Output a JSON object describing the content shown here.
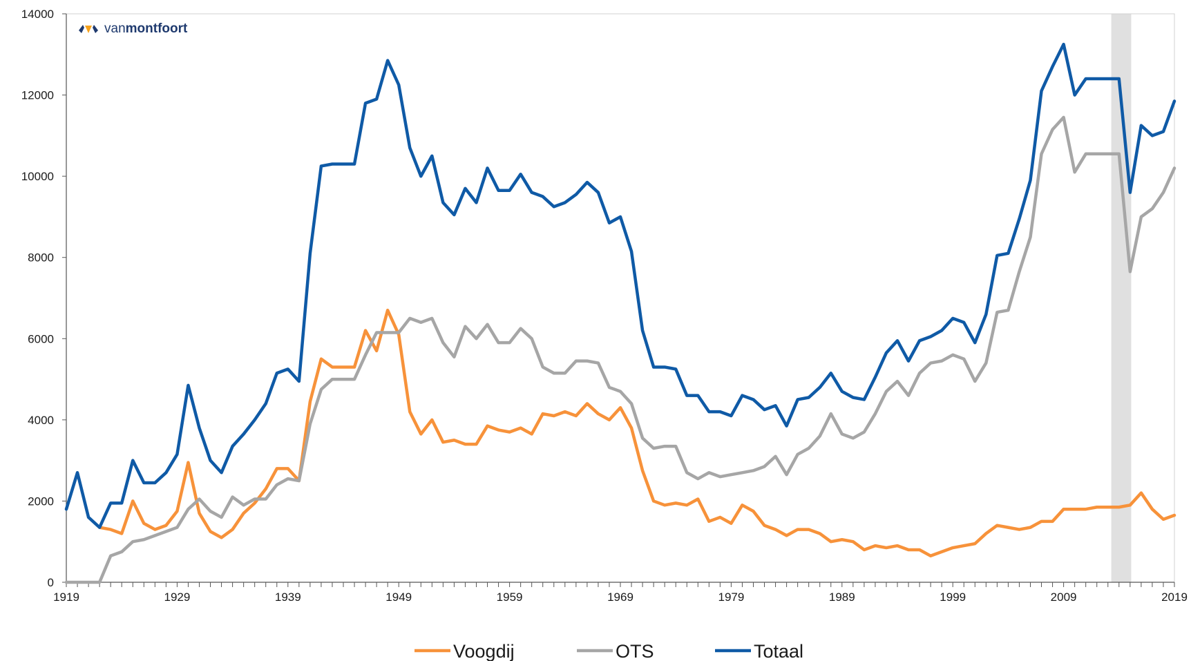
{
  "logo": {
    "prefix": "van",
    "brand": "montfoort"
  },
  "chart_data": {
    "type": "line",
    "title": "",
    "xlabel": "",
    "ylabel": "",
    "xlim": [
      1919,
      2019
    ],
    "ylim": [
      0,
      14000
    ],
    "y_ticks": [
      0,
      2000,
      4000,
      6000,
      8000,
      10000,
      12000,
      14000
    ],
    "x_tick_labels": [
      1919,
      1929,
      1939,
      1949,
      1959,
      1969,
      1979,
      1989,
      1999,
      2009,
      2019
    ],
    "grid": false,
    "legend_position": "bottom",
    "highlight_band": {
      "from": 2013.3,
      "to": 2015.1,
      "color": "#e0e0e0"
    },
    "x": [
      1919,
      1920,
      1921,
      1922,
      1923,
      1924,
      1925,
      1926,
      1927,
      1928,
      1929,
      1930,
      1931,
      1932,
      1933,
      1934,
      1935,
      1936,
      1937,
      1938,
      1939,
      1940,
      1941,
      1942,
      1943,
      1944,
      1945,
      1946,
      1947,
      1948,
      1949,
      1950,
      1951,
      1952,
      1953,
      1954,
      1955,
      1956,
      1957,
      1958,
      1959,
      1960,
      1961,
      1962,
      1963,
      1964,
      1965,
      1966,
      1967,
      1968,
      1969,
      1970,
      1971,
      1972,
      1973,
      1974,
      1975,
      1976,
      1977,
      1978,
      1979,
      1980,
      1981,
      1982,
      1983,
      1984,
      1985,
      1986,
      1987,
      1988,
      1989,
      1990,
      1991,
      1992,
      1993,
      1994,
      1995,
      1996,
      1997,
      1998,
      1999,
      2000,
      2001,
      2002,
      2003,
      2004,
      2005,
      2006,
      2007,
      2008,
      2009,
      2010,
      2011,
      2012,
      2013,
      2014,
      2015,
      2016,
      2017,
      2018,
      2019
    ],
    "series": [
      {
        "name": "Voogdij",
        "color": "#f7923a",
        "values": [
          null,
          null,
          null,
          1350,
          1300,
          1200,
          2000,
          1450,
          1300,
          1400,
          1750,
          2950,
          1700,
          1250,
          1100,
          1300,
          1700,
          1950,
          2300,
          2800,
          2800,
          2500,
          4450,
          5500,
          5300,
          5300,
          5300,
          6200,
          5700,
          6700,
          6100,
          4200,
          3650,
          4000,
          3450,
          3500,
          3400,
          3400,
          3850,
          3750,
          3700,
          3800,
          3650,
          4150,
          4100,
          4200,
          4100,
          4400,
          4150,
          4000,
          4300,
          3800,
          2750,
          2000,
          1900,
          1950,
          1900,
          2050,
          1500,
          1600,
          1450,
          1900,
          1750,
          1400,
          1300,
          1150,
          1300,
          1300,
          1200,
          1000,
          1050,
          1000,
          800,
          900,
          850,
          900,
          800,
          800,
          650,
          750,
          850,
          900,
          950,
          1200,
          1400,
          1350,
          1300,
          1350,
          1500,
          1500,
          1800,
          1800,
          1800,
          1850,
          1850,
          1850,
          1900,
          2200,
          1800,
          1550,
          1650
        ]
      },
      {
        "name": "OTS",
        "color": "#a6a6a6",
        "values": [
          0,
          0,
          0,
          0,
          650,
          750,
          1000,
          1050,
          1150,
          1250,
          1350,
          1800,
          2050,
          1750,
          1600,
          2100,
          1900,
          2050,
          2050,
          2400,
          2550,
          2500,
          3900,
          4750,
          5000,
          5000,
          5000,
          5600,
          6150,
          6150,
          6150,
          6500,
          6400,
          6500,
          5900,
          5550,
          6300,
          6000,
          6350,
          5900,
          5900,
          6250,
          6000,
          5300,
          5150,
          5150,
          5450,
          5450,
          5400,
          4800,
          4700,
          4400,
          3550,
          3300,
          3350,
          3350,
          2700,
          2550,
          2700,
          2600,
          2650,
          2700,
          2750,
          2850,
          3100,
          2650,
          3150,
          3300,
          3600,
          4150,
          3650,
          3550,
          3700,
          4150,
          4700,
          4950,
          4600,
          5150,
          5400,
          5450,
          5600,
          5500,
          4950,
          5400,
          6650,
          6700,
          7650,
          8500,
          10550,
          11150,
          11450,
          10100,
          10550,
          10550,
          10550,
          10550,
          7650,
          9000,
          9200,
          9600,
          10200
        ]
      },
      {
        "name": "Totaal",
        "color": "#0f5aa6",
        "values": [
          1800,
          2700,
          1600,
          1350,
          1950,
          1950,
          3000,
          2450,
          2450,
          2700,
          3150,
          4850,
          3800,
          3000,
          2700,
          3350,
          3650,
          4000,
          4400,
          5150,
          5250,
          4950,
          8100,
          10250,
          10300,
          10300,
          10300,
          11800,
          11900,
          12850,
          12250,
          10700,
          10000,
          10500,
          9350,
          9050,
          9700,
          9350,
          10200,
          9650,
          9650,
          10050,
          9600,
          9500,
          9250,
          9350,
          9550,
          9850,
          9600,
          8850,
          9000,
          8150,
          6200,
          5300,
          5300,
          5250,
          4600,
          4600,
          4200,
          4200,
          4100,
          4600,
          4500,
          4250,
          4350,
          3850,
          4500,
          4550,
          4800,
          5150,
          4700,
          4550,
          4500,
          5050,
          5650,
          5950,
          5450,
          5950,
          6050,
          6200,
          6500,
          6400,
          5900,
          6600,
          8050,
          8100,
          8950,
          9900,
          12100,
          12700,
          13250,
          12000,
          12400,
          12400,
          12400,
          12400,
          9600,
          11250,
          11000,
          11100,
          11850
        ]
      }
    ]
  }
}
